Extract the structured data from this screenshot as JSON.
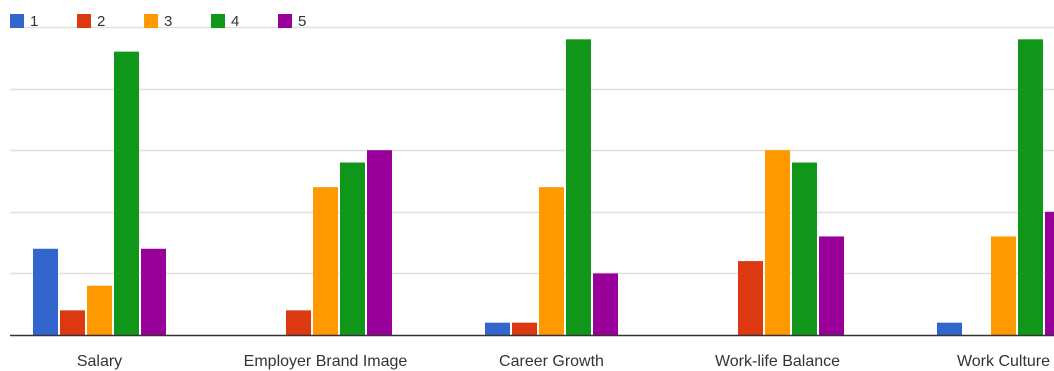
{
  "chart_data": {
    "type": "bar",
    "title": "",
    "xlabel": "",
    "ylabel": "",
    "categories": [
      "Salary",
      "Employer Brand Image",
      "Career Growth",
      "Work-life Balance",
      "Work Culture"
    ],
    "series": [
      {
        "name": "1",
        "color": "#3366cc",
        "values": [
          7,
          0,
          1,
          0,
          1
        ]
      },
      {
        "name": "2",
        "color": "#dc3912",
        "values": [
          2,
          2,
          1,
          6,
          0
        ]
      },
      {
        "name": "3",
        "color": "#ff9900",
        "values": [
          4,
          12,
          12,
          15,
          8
        ]
      },
      {
        "name": "4",
        "color": "#109618",
        "values": [
          23,
          14,
          24,
          14,
          24
        ]
      },
      {
        "name": "5",
        "color": "#990099",
        "values": [
          7,
          15,
          5,
          8,
          10
        ]
      }
    ],
    "ylim": [
      0,
      25
    ],
    "grid": true,
    "legend_position": "top-left"
  }
}
